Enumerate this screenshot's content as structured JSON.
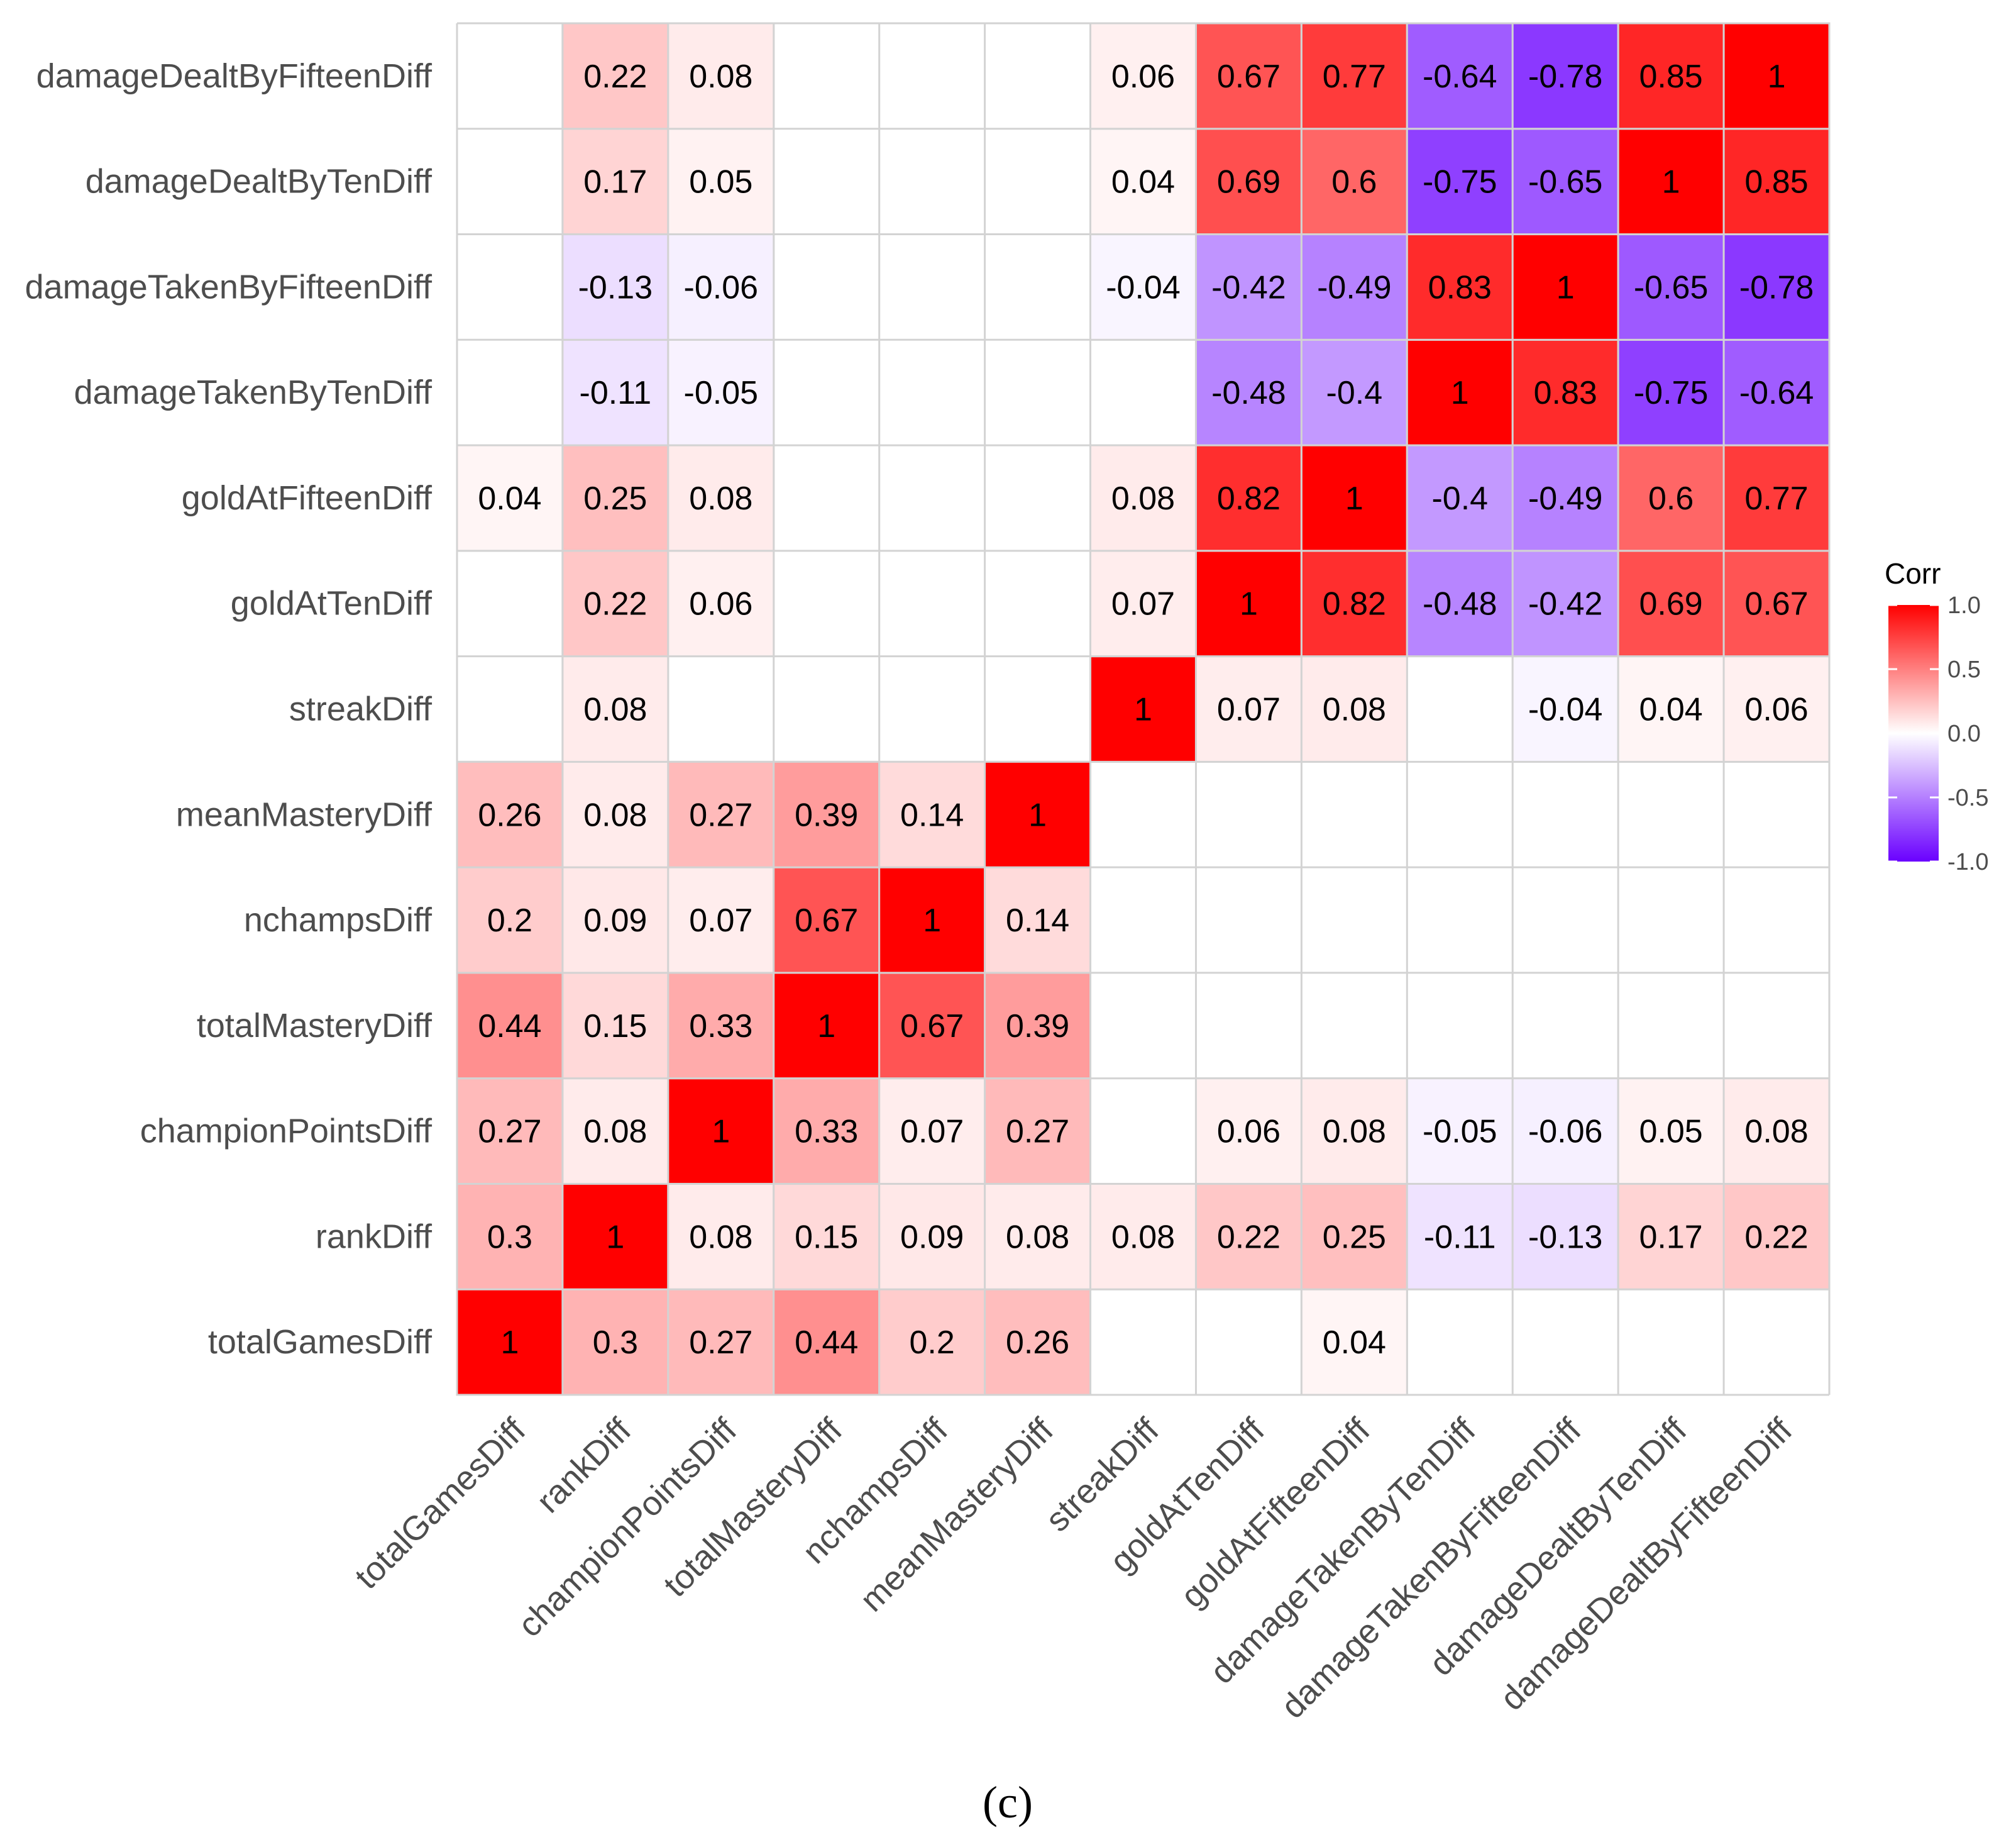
{
  "chart_data": {
    "type": "heatmap",
    "title": "",
    "xlabel": "",
    "ylabel": "",
    "variables": [
      "totalGamesDiff",
      "rankDiff",
      "championPointsDiff",
      "totalMasteryDiff",
      "nchampsDiff",
      "meanMasteryDiff",
      "streakDiff",
      "goldAtTenDiff",
      "goldAtFifteenDiff",
      "damageTakenByTenDiff",
      "damageTakenByFifteenDiff",
      "damageDealtByTenDiff",
      "damageDealtByFifteenDiff"
    ],
    "matrix": [
      [
        1,
        0.3,
        0.27,
        0.44,
        0.2,
        0.26,
        null,
        null,
        0.04,
        null,
        null,
        null,
        null
      ],
      [
        0.3,
        1,
        0.08,
        0.15,
        0.09,
        0.08,
        0.08,
        0.22,
        0.25,
        -0.11,
        -0.13,
        0.17,
        0.22
      ],
      [
        0.27,
        0.08,
        1,
        0.33,
        0.07,
        0.27,
        null,
        0.06,
        0.08,
        -0.05,
        -0.06,
        0.05,
        0.08
      ],
      [
        0.44,
        0.15,
        0.33,
        1,
        0.67,
        0.39,
        null,
        null,
        null,
        null,
        null,
        null,
        null
      ],
      [
        0.2,
        0.09,
        0.07,
        0.67,
        1,
        0.14,
        null,
        null,
        null,
        null,
        null,
        null,
        null
      ],
      [
        0.26,
        0.08,
        0.27,
        0.39,
        0.14,
        1,
        null,
        null,
        null,
        null,
        null,
        null,
        null
      ],
      [
        null,
        0.08,
        null,
        null,
        null,
        null,
        1,
        0.07,
        0.08,
        null,
        -0.04,
        0.04,
        0.06
      ],
      [
        null,
        0.22,
        0.06,
        null,
        null,
        null,
        0.07,
        1,
        0.82,
        -0.48,
        -0.42,
        0.69,
        0.67
      ],
      [
        0.04,
        0.25,
        0.08,
        null,
        null,
        null,
        0.08,
        0.82,
        1,
        -0.4,
        -0.49,
        0.6,
        0.77
      ],
      [
        null,
        -0.11,
        -0.05,
        null,
        null,
        null,
        null,
        -0.48,
        -0.4,
        1,
        0.83,
        -0.75,
        -0.64
      ],
      [
        null,
        -0.13,
        -0.06,
        null,
        null,
        null,
        -0.04,
        -0.42,
        -0.49,
        0.83,
        1,
        -0.65,
        -0.78
      ],
      [
        null,
        0.17,
        0.05,
        null,
        null,
        null,
        0.04,
        0.69,
        0.6,
        -0.75,
        -0.65,
        1,
        0.85
      ],
      [
        null,
        0.22,
        0.08,
        null,
        null,
        null,
        0.06,
        0.67,
        0.77,
        -0.64,
        -0.78,
        0.85,
        1
      ]
    ],
    "legend": {
      "title": "Corr",
      "ticks": [
        1.0,
        0.5,
        0.0,
        -0.5,
        -1.0
      ],
      "tick_labels": [
        "1.0",
        "0.5",
        "0.0",
        "-0.5",
        "-1.0"
      ],
      "range": [
        -1,
        1
      ],
      "position": "right"
    },
    "colors": {
      "high": "#ff0000",
      "mid": "#ffffff",
      "low": "#6a00ff",
      "grid": "#d3d3d3"
    }
  },
  "caption": "(c)"
}
